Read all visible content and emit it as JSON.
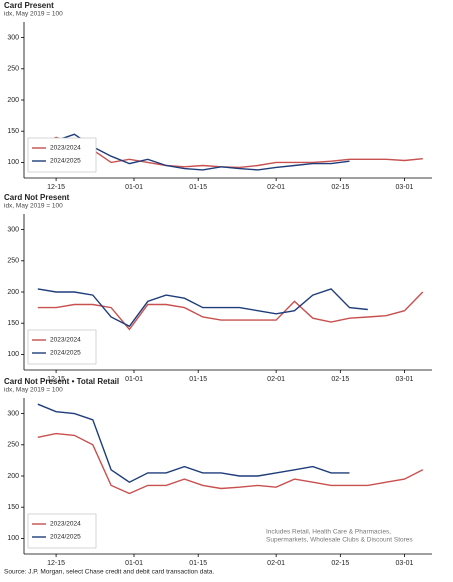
{
  "chart_data": [
    {
      "type": "line",
      "title": "Card Present",
      "subtitle": "idx, May 2019 = 100",
      "x": [
        "12-11",
        "12-15",
        "12-19",
        "12-23",
        "12-27",
        "12-31",
        "01-04",
        "01-08",
        "01-12",
        "01-16",
        "01-20",
        "01-24",
        "01-28",
        "02-01",
        "02-05",
        "02-09",
        "02-13",
        "02-17",
        "02-21",
        "02-25",
        "03-01",
        "03-05"
      ],
      "xlim": [
        "12-08",
        "03-07"
      ],
      "xticks": [
        "12-15",
        "01-01",
        "01-15",
        "02-01",
        "02-15",
        "03-01"
      ],
      "ylim": [
        75,
        325
      ],
      "yticks": [
        100,
        150,
        200,
        250,
        300
      ],
      "legend": "lower left",
      "series": [
        {
          "name": "2023/2024",
          "color": "#c8504f",
          "values": [
            125,
            140,
            130,
            120,
            100,
            105,
            100,
            95,
            93,
            95,
            93,
            92,
            95,
            100,
            100,
            100,
            102,
            105,
            105,
            105,
            103,
            106
          ]
        },
        {
          "name": "2024/2025",
          "color": "#1f3d7a",
          "values": [
            125,
            135,
            145,
            125,
            110,
            98,
            105,
            95,
            90,
            88,
            93,
            90,
            88,
            92,
            95,
            98,
            98,
            102,
            null,
            null,
            null,
            null
          ]
        }
      ]
    },
    {
      "type": "line",
      "title": "Card Not Present",
      "subtitle": "idx, May 2019 = 100",
      "x": [
        "12-11",
        "12-15",
        "12-19",
        "12-23",
        "12-27",
        "12-31",
        "01-04",
        "01-08",
        "01-12",
        "01-16",
        "01-20",
        "01-24",
        "01-28",
        "02-01",
        "02-05",
        "02-09",
        "02-13",
        "02-17",
        "02-21",
        "02-25",
        "03-01",
        "03-05"
      ],
      "xlim": [
        "12-08",
        "03-07"
      ],
      "xticks": [
        "12-15",
        "01-01",
        "01-15",
        "02-01",
        "02-15",
        "03-01"
      ],
      "ylim": [
        75,
        325
      ],
      "yticks": [
        100,
        150,
        200,
        250,
        300
      ],
      "legend": "lower left",
      "series": [
        {
          "name": "2023/2024",
          "color": "#c8504f",
          "values": [
            175,
            175,
            180,
            180,
            175,
            140,
            180,
            180,
            175,
            160,
            155,
            155,
            155,
            155,
            185,
            158,
            152,
            158,
            160,
            162,
            170,
            200
          ]
        },
        {
          "name": "2024/2025",
          "color": "#1f3d7a",
          "values": [
            205,
            200,
            200,
            195,
            160,
            145,
            185,
            195,
            190,
            175,
            175,
            175,
            170,
            165,
            170,
            195,
            205,
            175,
            172,
            null,
            null,
            null
          ]
        }
      ]
    },
    {
      "type": "line",
      "title": "Card Not Present • Total Retail",
      "subtitle": "idx, May 2019 = 100",
      "x": [
        "12-11",
        "12-15",
        "12-19",
        "12-23",
        "12-27",
        "12-31",
        "01-04",
        "01-08",
        "01-12",
        "01-16",
        "01-20",
        "01-24",
        "01-28",
        "02-01",
        "02-05",
        "02-09",
        "02-13",
        "02-17",
        "02-21",
        "02-25",
        "03-01",
        "03-05"
      ],
      "xlim": [
        "12-08",
        "03-07"
      ],
      "xticks": [
        "12-15",
        "01-01",
        "01-15",
        "02-01",
        "02-15",
        "03-01"
      ],
      "ylim": [
        75,
        325
      ],
      "yticks": [
        100,
        150,
        200,
        250,
        300
      ],
      "legend": "lower left",
      "annotation": [
        "Includes Retail, Health Care & Pharmacies,",
        "Supermarkets, Wholesale Clubs & Discount Stores"
      ],
      "series": [
        {
          "name": "2023/2024",
          "color": "#c8504f",
          "values": [
            262,
            268,
            265,
            250,
            185,
            172,
            185,
            185,
            195,
            185,
            180,
            182,
            185,
            182,
            195,
            190,
            185,
            185,
            185,
            190,
            195,
            210
          ]
        },
        {
          "name": "2024/2025",
          "color": "#1f3d7a",
          "values": [
            315,
            303,
            300,
            290,
            210,
            190,
            205,
            205,
            215,
            205,
            205,
            200,
            200,
            205,
            210,
            215,
            205,
            205,
            null,
            null,
            null,
            null
          ]
        }
      ]
    }
  ],
  "source": "Source: J.P. Morgan, select Chase credit and debit card transaction data."
}
